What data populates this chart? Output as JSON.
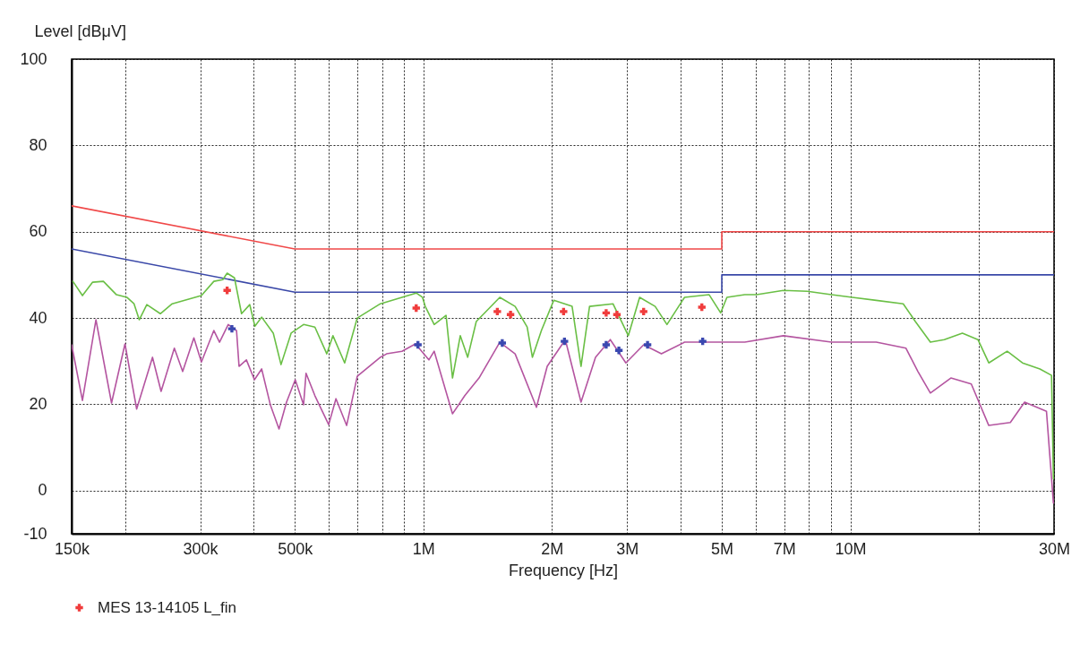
{
  "chart_data": {
    "type": "line",
    "xlabel": "Frequency [Hz]",
    "ylabel": "Level [dBμV]",
    "log": "x",
    "grid": true,
    "legend": "bottom left",
    "xlim": [
      150000,
      30000000
    ],
    "xticks": [
      {
        "value": 150000,
        "label": "150k"
      },
      {
        "value": 200000,
        "label": null
      },
      {
        "value": 300000,
        "label": "300k"
      },
      {
        "value": 400000,
        "label": null
      },
      {
        "value": 500000,
        "label": "500k"
      },
      {
        "value": 600000,
        "label": null
      },
      {
        "value": 700000,
        "label": null
      },
      {
        "value": 800000,
        "label": null
      },
      {
        "value": 900000,
        "label": null
      },
      {
        "value": 1000000,
        "label": "1M"
      },
      {
        "value": 2000000,
        "label": "2M"
      },
      {
        "value": 3000000,
        "label": "3M"
      },
      {
        "value": 4000000,
        "label": null
      },
      {
        "value": 5000000,
        "label": "5M"
      },
      {
        "value": 6000000,
        "label": null
      },
      {
        "value": 7000000,
        "label": "7M"
      },
      {
        "value": 8000000,
        "label": null
      },
      {
        "value": 9000000,
        "label": null
      },
      {
        "value": 10000000,
        "label": "10M"
      },
      {
        "value": 20000000,
        "label": null
      },
      {
        "value": 30000000,
        "label": "30M"
      }
    ],
    "ylim": [
      -10,
      100
    ],
    "yticks": [
      -10,
      0,
      20,
      40,
      60,
      80,
      100
    ],
    "series": [
      {
        "color": "#f04848",
        "x": [
          150000,
          500000,
          5000000,
          5000000,
          30000000
        ],
        "values": [
          66,
          56,
          56,
          60,
          60
        ]
      },
      {
        "color": "#3a48a8",
        "x": [
          150000,
          500000,
          5000000,
          5000000,
          30000000
        ],
        "values": [
          56,
          46,
          46,
          50,
          50
        ]
      },
      {
        "color": "#6abf45",
        "x": [
          151000,
          159000,
          168000,
          178000,
          191000,
          202000,
          210000,
          216000,
          225000,
          242000,
          258000,
          302000,
          323000,
          339000,
          347000,
          361000,
          375000,
          392000,
          403000,
          418000,
          445000,
          464000,
          490000,
          524000,
          557000,
          594000,
          614000,
          654000,
          700000,
          793000,
          891000,
          962000,
          995000,
          1010000,
          1060000,
          1130000,
          1170000,
          1220000,
          1270000,
          1330000,
          1510000,
          1640000,
          1750000,
          1800000,
          1890000,
          2020000,
          2230000,
          2340000,
          2450000,
          2780000,
          3020000,
          3210000,
          3490000,
          3720000,
          4090000,
          4670000,
          4970000,
          5140000,
          5660000,
          6030000,
          6970000,
          7930000,
          9030000,
          10100000,
          11500000,
          13300000,
          14200000,
          15400000,
          16600000,
          18300000,
          19900000,
          21100000,
          23300000,
          25300000,
          27800000,
          29600000,
          29900000
        ],
        "values": [
          48.5,
          45.2,
          48.3,
          48.5,
          45.4,
          44.8,
          43.3,
          39.6,
          43.1,
          41.0,
          43.3,
          45.2,
          48.5,
          48.9,
          50.4,
          49.3,
          41.0,
          43.1,
          38.1,
          40.2,
          36.5,
          29.2,
          36.5,
          38.5,
          37.9,
          31.7,
          35.9,
          29.6,
          40.0,
          43.3,
          44.8,
          45.8,
          44.8,
          42.7,
          38.5,
          40.6,
          26.1,
          35.9,
          30.9,
          39.2,
          44.8,
          42.7,
          37.9,
          30.9,
          37.1,
          44.1,
          42.7,
          28.8,
          42.7,
          43.3,
          35.9,
          44.8,
          42.7,
          38.5,
          44.8,
          45.4,
          41.2,
          44.8,
          45.4,
          45.4,
          46.4,
          46.2,
          45.4,
          44.8,
          44.1,
          43.3,
          39.2,
          34.4,
          35.0,
          36.5,
          35.0,
          29.6,
          32.3,
          29.6,
          28.2,
          26.7,
          2.7
        ]
      },
      {
        "color": "#b455a0",
        "x": [
          150000,
          159000,
          171000,
          186000,
          200000,
          213000,
          232000,
          243000,
          261000,
          273000,
          290000,
          302000,
          323000,
          333000,
          349000,
          365000,
          370000,
          385000,
          402000,
          418000,
          438000,
          459000,
          478000,
          501000,
          524000,
          531000,
          557000,
          600000,
          624000,
          661000,
          700000,
          793000,
          820000,
          891000,
          958000,
          1030000,
          1060000,
          1170000,
          1250000,
          1350000,
          1510000,
          1640000,
          1840000,
          1950000,
          2150000,
          2340000,
          2530000,
          2740000,
          2980000,
          3280000,
          3610000,
          4090000,
          4670000,
          5660000,
          6970000,
          9030000,
          11500000,
          13500000,
          14400000,
          15400000,
          17200000,
          19200000,
          21100000,
          23700000,
          25600000,
          28800000,
          29900000
        ],
        "values": [
          33.8,
          20.9,
          39.6,
          20.3,
          34.0,
          18.9,
          30.9,
          23.0,
          33.0,
          27.6,
          35.4,
          29.8,
          37.1,
          34.4,
          38.5,
          37.1,
          28.8,
          30.3,
          25.7,
          28.2,
          19.9,
          14.3,
          20.5,
          25.7,
          19.9,
          27.2,
          22.0,
          15.3,
          21.3,
          15.1,
          26.5,
          30.9,
          31.7,
          32.3,
          34.0,
          30.3,
          32.3,
          17.8,
          22.0,
          26.1,
          34.4,
          31.7,
          19.3,
          28.8,
          35.0,
          20.5,
          30.9,
          35.0,
          29.6,
          33.8,
          31.7,
          34.4,
          34.4,
          34.4,
          35.9,
          34.4,
          34.4,
          33.0,
          27.6,
          22.6,
          26.1,
          24.7,
          15.1,
          15.8,
          20.5,
          18.4,
          -2.9
        ]
      },
      {
        "type": "scatter",
        "marker": "cross",
        "name": "MES 13-14105 L_fin",
        "color": "#f03c3c",
        "x": [
          347000,
          962000,
          1490000,
          1600000,
          2130000,
          2680000,
          2840000,
          3280000,
          4490000
        ],
        "values": [
          46.4,
          42.3,
          41.5,
          40.8,
          41.5,
          41.2,
          40.8,
          41.5,
          42.5
        ]
      },
      {
        "type": "scatter",
        "marker": "cross",
        "color": "#3a48b0",
        "x": [
          356000,
          971000,
          1530000,
          2140000,
          2680000,
          2870000,
          3350000,
          4510000
        ],
        "values": [
          37.5,
          33.8,
          34.2,
          34.6,
          33.8,
          32.5,
          33.8,
          34.6
        ]
      }
    ]
  }
}
